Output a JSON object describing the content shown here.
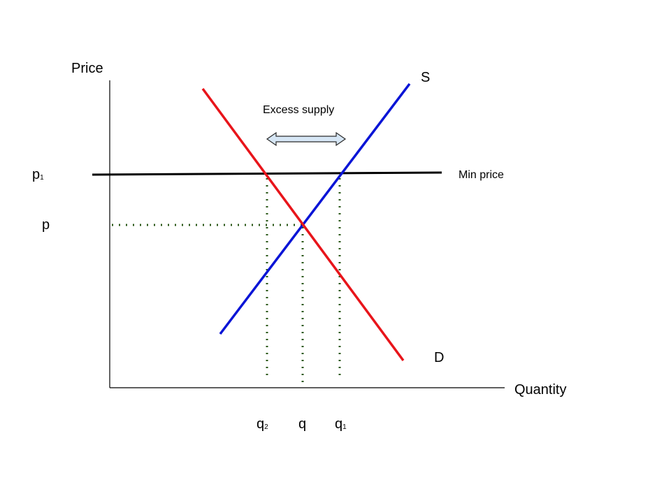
{
  "diagram": {
    "y_axis_label": "Price",
    "x_axis_label": "Quantity",
    "supply_label": "S",
    "demand_label": "D",
    "min_price_label": "Min price",
    "excess_supply_label": "Excess supply",
    "price_labels": {
      "p1_base": "p",
      "p1_sub": "1",
      "p": "p"
    },
    "quantity_labels": {
      "q2_base": "q",
      "q2_sub": "2",
      "q": "q",
      "q1_base": "q",
      "q1_sub": "1"
    },
    "colors": {
      "supply": "#0a14d6",
      "demand": "#e8141a",
      "min_price_line": "#000000",
      "guides": "#2d5a1b",
      "arrow_fill": "#d6e6f5",
      "arrow_stroke": "#2a2a2a",
      "axes": "#000000"
    }
  }
}
